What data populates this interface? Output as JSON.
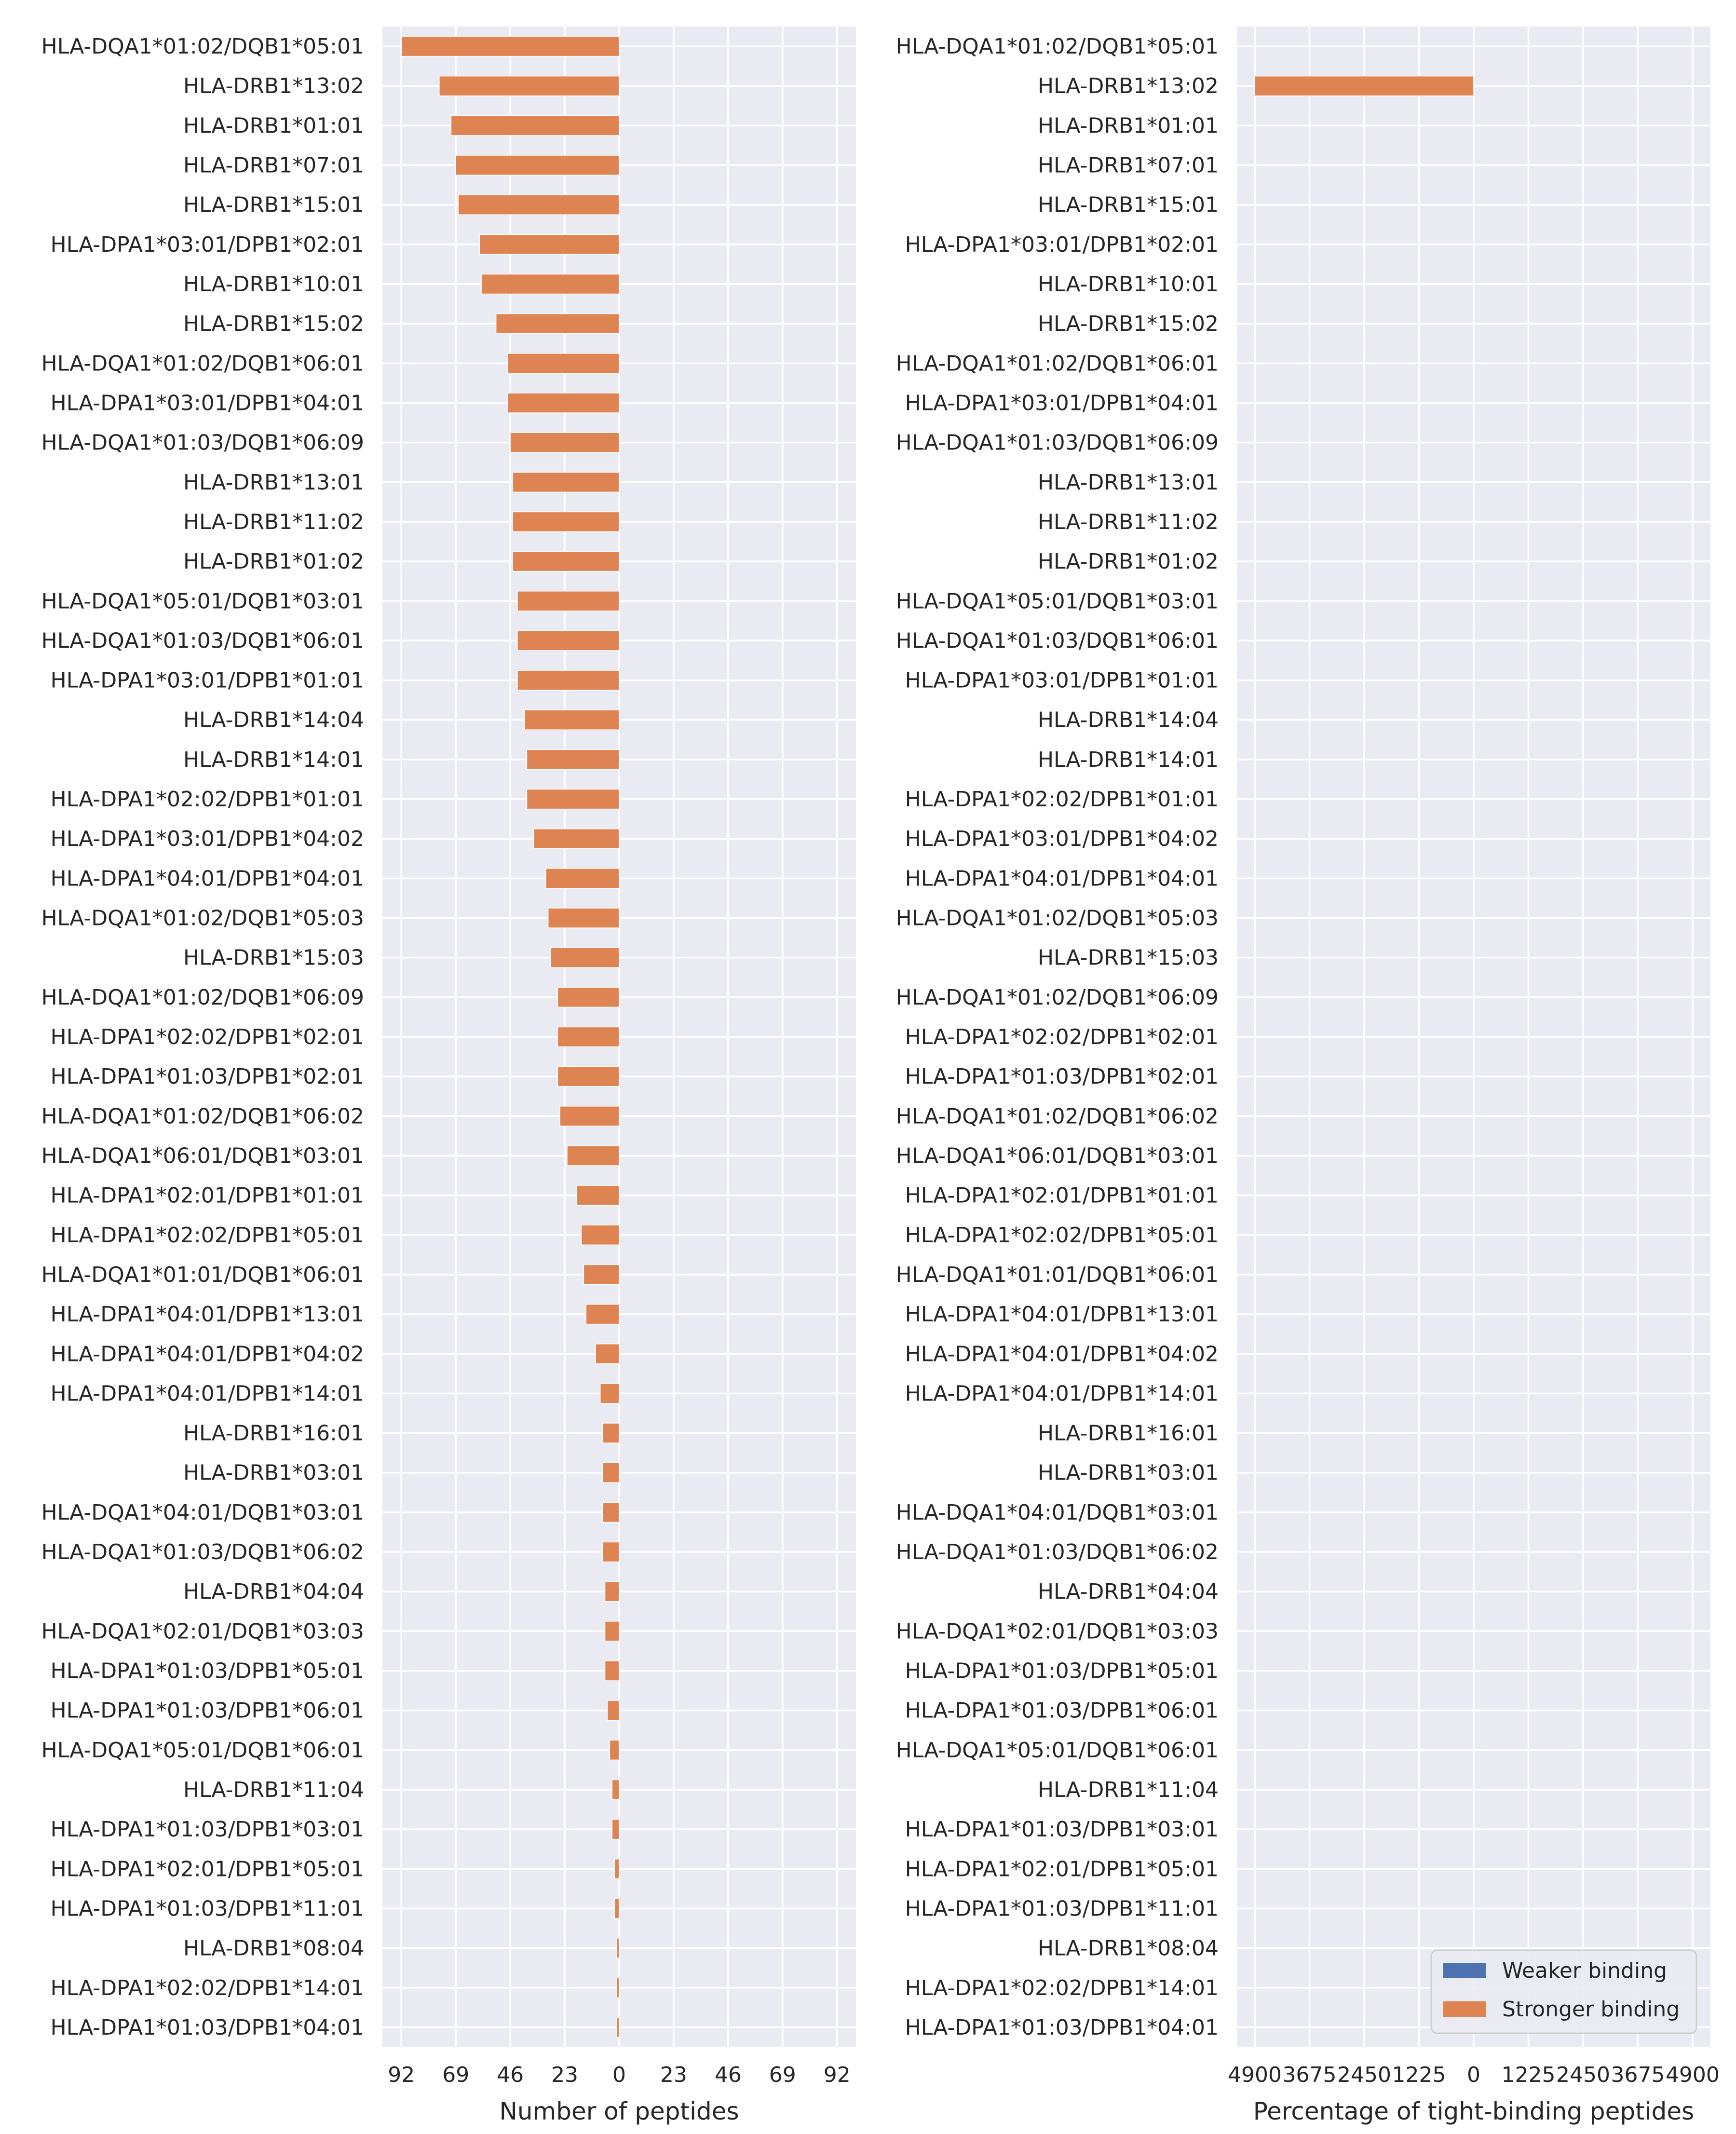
{
  "chart_data": [
    {
      "type": "bar",
      "orientation": "horizontal",
      "stacked": true,
      "x_direction": "diverging",
      "xlabel": "Number of peptides",
      "xlim": [
        -100,
        100
      ],
      "xticks": [
        -92,
        -69,
        -46,
        -23,
        0,
        23,
        46,
        69,
        92
      ],
      "xtick_labels": [
        "92",
        "69",
        "46",
        "23",
        "0",
        "23",
        "46",
        "69",
        "92"
      ],
      "grid": true,
      "categories": [
        "HLA-DQA1*01:02/DQB1*05:01",
        "HLA-DRB1*13:02",
        "HLA-DRB1*01:01",
        "HLA-DRB1*07:01",
        "HLA-DRB1*15:01",
        "HLA-DPA1*03:01/DPB1*02:01",
        "HLA-DRB1*10:01",
        "HLA-DRB1*15:02",
        "HLA-DQA1*01:02/DQB1*06:01",
        "HLA-DPA1*03:01/DPB1*04:01",
        "HLA-DQA1*01:03/DQB1*06:09",
        "HLA-DRB1*13:01",
        "HLA-DRB1*11:02",
        "HLA-DRB1*01:02",
        "HLA-DQA1*05:01/DQB1*03:01",
        "HLA-DQA1*01:03/DQB1*06:01",
        "HLA-DPA1*03:01/DPB1*01:01",
        "HLA-DRB1*14:04",
        "HLA-DRB1*14:01",
        "HLA-DPA1*02:02/DPB1*01:01",
        "HLA-DPA1*03:01/DPB1*04:02",
        "HLA-DPA1*04:01/DPB1*04:01",
        "HLA-DQA1*01:02/DQB1*05:03",
        "HLA-DRB1*15:03",
        "HLA-DQA1*01:02/DQB1*06:09",
        "HLA-DPA1*02:02/DPB1*02:01",
        "HLA-DPA1*01:03/DPB1*02:01",
        "HLA-DQA1*01:02/DQB1*06:02",
        "HLA-DQA1*06:01/DQB1*03:01",
        "HLA-DPA1*02:01/DPB1*01:01",
        "HLA-DPA1*02:02/DPB1*05:01",
        "HLA-DQA1*01:01/DQB1*06:01",
        "HLA-DPA1*04:01/DPB1*13:01",
        "HLA-DPA1*04:01/DPB1*04:02",
        "HLA-DPA1*04:01/DPB1*14:01",
        "HLA-DRB1*16:01",
        "HLA-DRB1*03:01",
        "HLA-DQA1*04:01/DQB1*03:01",
        "HLA-DQA1*01:03/DQB1*06:02",
        "HLA-DRB1*04:04",
        "HLA-DQA1*02:01/DQB1*03:03",
        "HLA-DPA1*01:03/DPB1*05:01",
        "HLA-DPA1*01:03/DPB1*06:01",
        "HLA-DQA1*05:01/DQB1*06:01",
        "HLA-DRB1*11:04",
        "HLA-DPA1*01:03/DPB1*03:01",
        "HLA-DPA1*02:01/DPB1*05:01",
        "HLA-DPA1*01:03/DPB1*11:01",
        "HLA-DRB1*08:04",
        "HLA-DPA1*02:02/DPB1*14:01",
        "HLA-DPA1*01:03/DPB1*04:01"
      ],
      "series": [
        {
          "name": "Weaker binding",
          "color": "#4c72b0",
          "values": [
            0,
            0,
            0,
            0,
            0,
            0,
            0,
            0,
            0,
            0,
            0,
            0,
            0,
            0,
            0,
            0,
            0,
            0,
            0,
            0,
            0,
            0,
            0,
            0,
            0,
            0,
            0,
            0,
            0,
            0,
            0,
            0,
            0,
            0,
            0,
            0,
            0,
            0,
            0,
            0,
            0,
            0,
            0,
            0,
            0,
            0,
            0,
            0,
            0,
            0,
            0
          ]
        },
        {
          "name": "Stronger binding",
          "color": "#dd8452",
          "values": [
            -92,
            -76,
            -71,
            -69,
            -68,
            -59,
            -58,
            -52,
            -47,
            -47,
            -46,
            -45,
            -45,
            -45,
            -43,
            -43,
            -43,
            -40,
            -39,
            -39,
            -36,
            -31,
            -30,
            -29,
            -26,
            -26,
            -26,
            -25,
            -22,
            -18,
            -16,
            -15,
            -14,
            -10,
            -8,
            -7,
            -7,
            -7,
            -7,
            -6,
            -6,
            -6,
            -5,
            -4,
            -3,
            -3,
            -2,
            -2,
            -1,
            -1,
            -1
          ]
        }
      ]
    },
    {
      "type": "bar",
      "orientation": "horizontal",
      "stacked": true,
      "x_direction": "diverging",
      "xlabel": "Percentage of tight-binding peptides",
      "xlim": [
        -5300,
        5300
      ],
      "xticks": [
        -4900,
        -3675,
        -2450,
        -1225,
        0,
        1225,
        2450,
        3675,
        4900
      ],
      "xtick_labels": [
        "4900",
        "3675",
        "2450",
        "1225",
        "0",
        "1225",
        "2450",
        "3675",
        "4900"
      ],
      "grid": true,
      "legend_position": "lower-right",
      "categories": [
        "HLA-DQA1*01:02/DQB1*05:01",
        "HLA-DRB1*13:02",
        "HLA-DRB1*01:01",
        "HLA-DRB1*07:01",
        "HLA-DRB1*15:01",
        "HLA-DPA1*03:01/DPB1*02:01",
        "HLA-DRB1*10:01",
        "HLA-DRB1*15:02",
        "HLA-DQA1*01:02/DQB1*06:01",
        "HLA-DPA1*03:01/DPB1*04:01",
        "HLA-DQA1*01:03/DQB1*06:09",
        "HLA-DRB1*13:01",
        "HLA-DRB1*11:02",
        "HLA-DRB1*01:02",
        "HLA-DQA1*05:01/DQB1*03:01",
        "HLA-DQA1*01:03/DQB1*06:01",
        "HLA-DPA1*03:01/DPB1*01:01",
        "HLA-DRB1*14:04",
        "HLA-DRB1*14:01",
        "HLA-DPA1*02:02/DPB1*01:01",
        "HLA-DPA1*03:01/DPB1*04:02",
        "HLA-DPA1*04:01/DPB1*04:01",
        "HLA-DQA1*01:02/DQB1*05:03",
        "HLA-DRB1*15:03",
        "HLA-DQA1*01:02/DQB1*06:09",
        "HLA-DPA1*02:02/DPB1*02:01",
        "HLA-DPA1*01:03/DPB1*02:01",
        "HLA-DQA1*01:02/DQB1*06:02",
        "HLA-DQA1*06:01/DQB1*03:01",
        "HLA-DPA1*02:01/DPB1*01:01",
        "HLA-DPA1*02:02/DPB1*05:01",
        "HLA-DQA1*01:01/DQB1*06:01",
        "HLA-DPA1*04:01/DPB1*13:01",
        "HLA-DPA1*04:01/DPB1*04:02",
        "HLA-DPA1*04:01/DPB1*14:01",
        "HLA-DRB1*16:01",
        "HLA-DRB1*03:01",
        "HLA-DQA1*04:01/DQB1*03:01",
        "HLA-DQA1*01:03/DQB1*06:02",
        "HLA-DRB1*04:04",
        "HLA-DQA1*02:01/DQB1*03:03",
        "HLA-DPA1*01:03/DPB1*05:01",
        "HLA-DPA1*01:03/DPB1*06:01",
        "HLA-DQA1*05:01/DQB1*06:01",
        "HLA-DRB1*11:04",
        "HLA-DPA1*01:03/DPB1*03:01",
        "HLA-DPA1*02:01/DPB1*05:01",
        "HLA-DPA1*01:03/DPB1*11:01",
        "HLA-DRB1*08:04",
        "HLA-DPA1*02:02/DPB1*14:01",
        "HLA-DPA1*01:03/DPB1*04:01"
      ],
      "series": [
        {
          "name": "Weaker binding",
          "color": "#4c72b0",
          "values": [
            0,
            0,
            0,
            0,
            0,
            0,
            0,
            0,
            0,
            0,
            0,
            0,
            0,
            0,
            0,
            0,
            0,
            0,
            0,
            0,
            0,
            0,
            0,
            0,
            0,
            0,
            0,
            0,
            0,
            0,
            0,
            0,
            0,
            0,
            0,
            0,
            0,
            0,
            0,
            0,
            0,
            0,
            0,
            0,
            0,
            0,
            0,
            0,
            0,
            0,
            0
          ]
        },
        {
          "name": "Stronger binding",
          "color": "#dd8452",
          "values": [
            0,
            -4900,
            0,
            0,
            0,
            0,
            0,
            0,
            0,
            0,
            0,
            0,
            0,
            0,
            0,
            0,
            0,
            0,
            0,
            0,
            0,
            0,
            0,
            0,
            0,
            0,
            0,
            0,
            0,
            0,
            0,
            0,
            0,
            0,
            0,
            0,
            0,
            0,
            0,
            0,
            0,
            0,
            0,
            0,
            0,
            0,
            0,
            0,
            0,
            0,
            0
          ]
        }
      ]
    }
  ],
  "legend": {
    "items": [
      {
        "label": "Weaker binding",
        "color": "#4c72b0"
      },
      {
        "label": "Stronger binding",
        "color": "#dd8452"
      }
    ]
  },
  "style": {
    "plot_background": "#eaeaf2",
    "grid_color": "#ffffff",
    "text_color": "#262626"
  }
}
